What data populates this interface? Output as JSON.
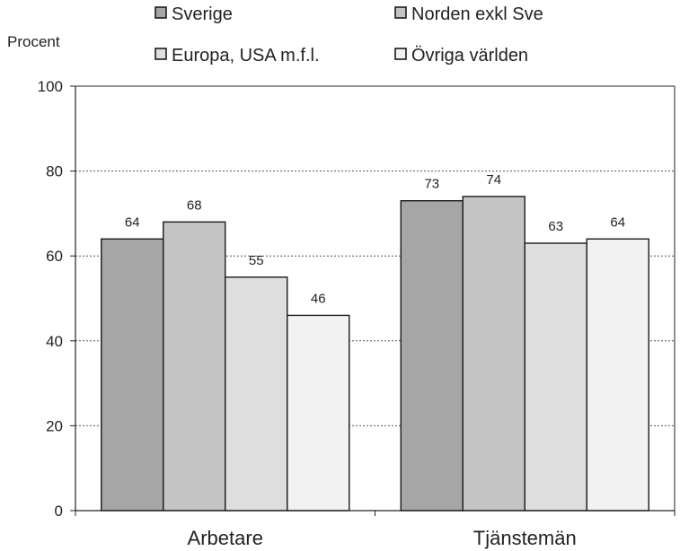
{
  "chart_data": {
    "type": "bar",
    "ylabel": "Procent",
    "xlabel": "",
    "title": "",
    "ylim": [
      0,
      100
    ],
    "yticks": [
      0,
      20,
      40,
      60,
      80,
      100
    ],
    "grid": true,
    "legend_position": "top",
    "categories": [
      "Arbetare",
      "Tjänstemän"
    ],
    "series": [
      {
        "name": "Sverige",
        "values": [
          64,
          73
        ],
        "color": "#a6a6a6"
      },
      {
        "name": "Norden exkl Sve",
        "values": [
          68,
          74
        ],
        "color": "#c4c4c4"
      },
      {
        "name": "Europa, USA m.f.l.",
        "values": [
          55,
          63
        ],
        "color": "#dedede"
      },
      {
        "name": "Övriga världen",
        "values": [
          46,
          64
        ],
        "color": "#f2f2f2"
      }
    ]
  }
}
